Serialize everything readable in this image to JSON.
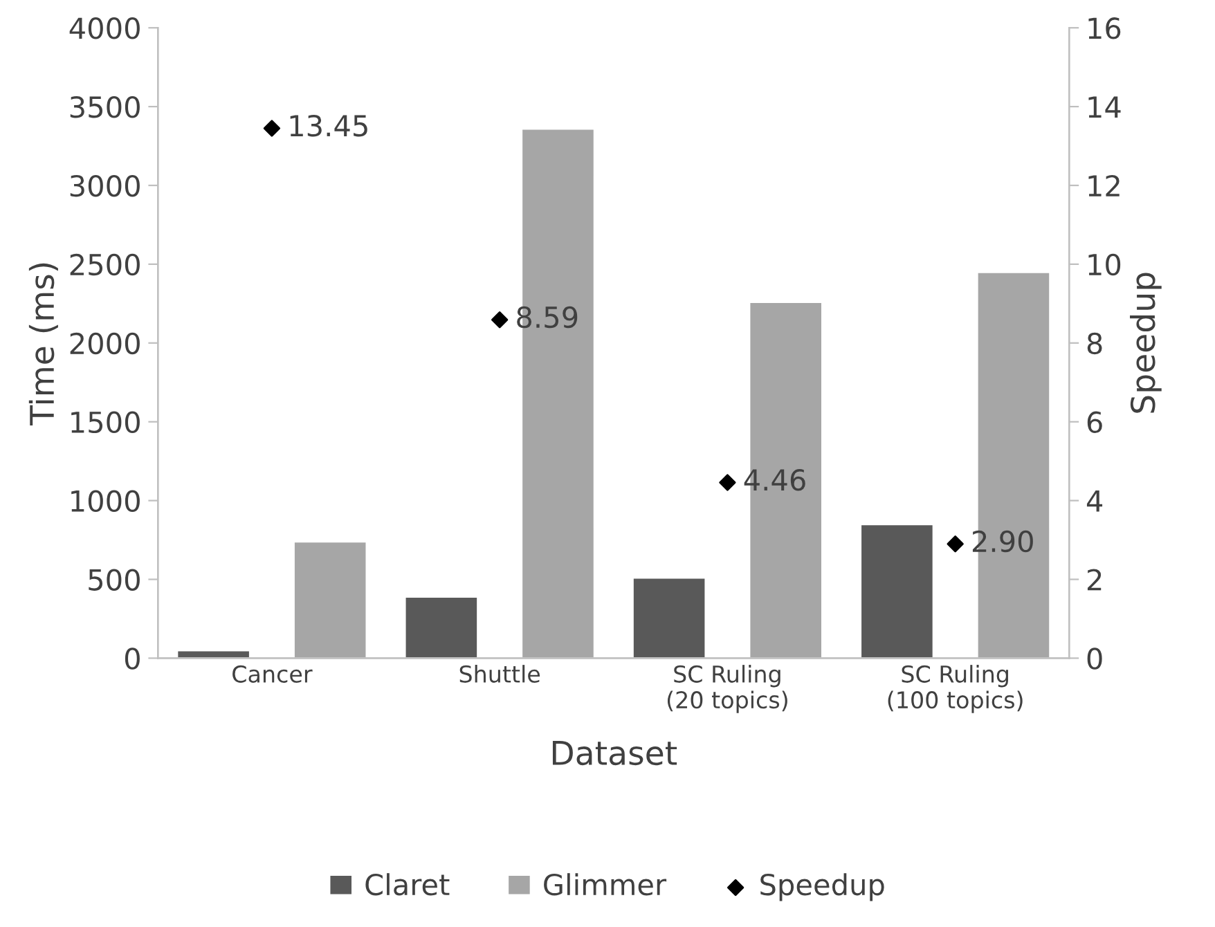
{
  "chart_data": {
    "type": "bar",
    "xlabel": "Dataset",
    "ylabel": "Time (ms)",
    "y2label": "Speedup",
    "categories": [
      "Cancer",
      "Shuttle",
      "SC Ruling (20 topics)",
      "SC Ruling (100 topics)"
    ],
    "series": [
      {
        "name": "Claret",
        "color": "#595959",
        "values": [
          50,
          390,
          510,
          850
        ]
      },
      {
        "name": "Glimmer",
        "color": "#a6a6a6",
        "values": [
          740,
          3360,
          2260,
          2450
        ]
      },
      {
        "name": "Speedup",
        "type": "scatter",
        "axis": "y2",
        "color": "#000000",
        "values": [
          13.45,
          8.59,
          4.46,
          2.9
        ],
        "value_labels": [
          "13.45",
          "8.59",
          "4.46",
          "2.90"
        ]
      }
    ],
    "ylim": [
      0,
      4000
    ],
    "yticks": [
      0,
      500,
      1000,
      1500,
      2000,
      2500,
      3000,
      3500,
      4000
    ],
    "y2lim": [
      0,
      16
    ],
    "y2ticks": [
      0,
      2,
      4,
      6,
      8,
      10,
      12,
      14,
      16
    ],
    "marker": "diamond",
    "grid": false,
    "legend": "bottom"
  }
}
